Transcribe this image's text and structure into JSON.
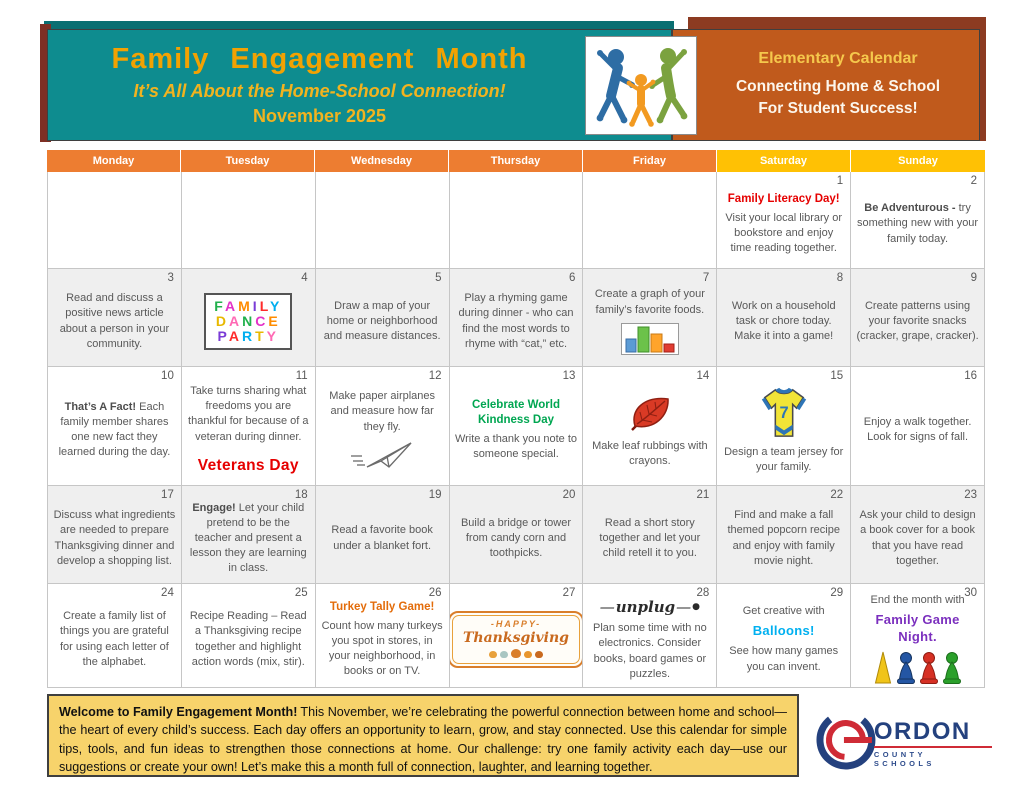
{
  "header": {
    "title": "Family Engagement Month",
    "subtitle": "It’s All About the Home-School Connection!",
    "month": "November 2025",
    "badge": {
      "title": "Elementary Calendar",
      "line1": "Connecting Home & School",
      "line2": "For Student Success!"
    }
  },
  "colors": {
    "red": "#E60000",
    "green": "#00A651",
    "orange": "#E36C0A",
    "cyan": "#00B0F0",
    "purple": "#7B2FBE",
    "weekday_bg": "#ED7D31",
    "weekend_bg": "#FFC104",
    "teal": "#0E8C8F",
    "header_orange": "#C05A1C",
    "welcome_bg": "#F7D36B"
  },
  "calendar": {
    "weekdays": [
      "Monday",
      "Tuesday",
      "Wednesday",
      "Thursday",
      "Friday",
      "Saturday",
      "Sunday"
    ],
    "cells": [
      {
        "day": "",
        "parts": []
      },
      {
        "day": "",
        "parts": []
      },
      {
        "day": "",
        "parts": []
      },
      {
        "day": "",
        "parts": []
      },
      {
        "day": "",
        "parts": []
      },
      {
        "day": "1",
        "parts": [
          {
            "t": "heading",
            "color": "red",
            "text": "Family Literacy Day!"
          },
          {
            "t": "text",
            "text": "Visit your local library or bookstore and enjoy time reading together."
          }
        ]
      },
      {
        "day": "2",
        "parts": [
          {
            "t": "lead",
            "b": "Be Adventurous -",
            "r": "try something new with your family today."
          }
        ]
      },
      {
        "day": "3",
        "parts": [
          {
            "t": "text",
            "text": "Read and discuss a positive news article about a person in your community."
          }
        ]
      },
      {
        "day": "4",
        "parts": [
          {
            "t": "icon",
            "name": "family-dance-party",
            "lines": [
              "FAMILY",
              "DANCE",
              "PARTY"
            ]
          }
        ]
      },
      {
        "day": "5",
        "parts": [
          {
            "t": "text",
            "text": "Draw a map of your home or neighborhood and measure distances."
          }
        ]
      },
      {
        "day": "6",
        "parts": [
          {
            "t": "text",
            "text": "Play a rhyming game during dinner - who can find the most words to rhyme with “cat,” etc."
          }
        ]
      },
      {
        "day": "7",
        "parts": [
          {
            "t": "text",
            "text": "Create a graph of your family’s favorite foods."
          },
          {
            "t": "icon",
            "name": "bar-chart"
          }
        ]
      },
      {
        "day": "8",
        "parts": [
          {
            "t": "text",
            "text": "Work on a household task or chore today. Make it into a game!"
          }
        ]
      },
      {
        "day": "9",
        "parts": [
          {
            "t": "text",
            "text": "Create patterns using your favorite snacks (cracker, grape, cracker)."
          }
        ]
      },
      {
        "day": "10",
        "parts": [
          {
            "t": "lead",
            "b": "That’s A Fact!",
            "r": "Each family member shares one new fact they learned during the day."
          }
        ]
      },
      {
        "day": "11",
        "parts": [
          {
            "t": "text",
            "text": "Take turns sharing what freedoms you are thankful for because of a veteran during dinner."
          },
          {
            "t": "heading",
            "color": "red",
            "size": "lg",
            "text": "Veterans Day"
          }
        ]
      },
      {
        "day": "12",
        "parts": [
          {
            "t": "text",
            "text": "Make paper airplanes and measure how far they fly."
          },
          {
            "t": "icon",
            "name": "paper-airplane"
          }
        ]
      },
      {
        "day": "13",
        "parts": [
          {
            "t": "heading",
            "color": "green",
            "text": "Celebrate World Kindness Day"
          },
          {
            "t": "text",
            "text": "Write a thank you note to someone special."
          }
        ]
      },
      {
        "day": "14",
        "parts": [
          {
            "t": "icon",
            "name": "leaf"
          },
          {
            "t": "text",
            "text": "Make leaf rubbings with crayons."
          }
        ]
      },
      {
        "day": "15",
        "parts": [
          {
            "t": "icon",
            "name": "jersey",
            "number": "7"
          },
          {
            "t": "text",
            "text": "Design a team jersey for your family."
          }
        ]
      },
      {
        "day": "16",
        "parts": [
          {
            "t": "text",
            "text": "Enjoy a walk together. Look for signs of fall."
          }
        ]
      },
      {
        "day": "17",
        "parts": [
          {
            "t": "text",
            "text": "Discuss what ingredients are needed to prepare Thanksgiving dinner and develop a shopping list."
          }
        ]
      },
      {
        "day": "18",
        "parts": [
          {
            "t": "lead",
            "b": "Engage!",
            "r": "Let your child pretend to be the teacher and present a lesson they are learning in class."
          }
        ]
      },
      {
        "day": "19",
        "parts": [
          {
            "t": "text",
            "text": "Read a favorite book under a blanket fort."
          }
        ]
      },
      {
        "day": "20",
        "parts": [
          {
            "t": "text",
            "text": "Build a bridge or tower from candy corn and toothpicks."
          }
        ]
      },
      {
        "day": "21",
        "parts": [
          {
            "t": "text",
            "text": "Read a short story together and let your child retell it to you."
          }
        ]
      },
      {
        "day": "22",
        "parts": [
          {
            "t": "text",
            "text": "Find and make a fall themed popcorn recipe and enjoy with family movie night."
          }
        ]
      },
      {
        "day": "23",
        "parts": [
          {
            "t": "text",
            "text": "Ask your child to design a book cover for a book that you have read together."
          }
        ]
      },
      {
        "day": "24",
        "parts": [
          {
            "t": "text",
            "text": "Create a family list of things you are grateful for using each letter of the alphabet."
          }
        ]
      },
      {
        "day": "25",
        "parts": [
          {
            "t": "text",
            "text": "Recipe Reading – Read a Thanksgiving recipe together and highlight action words (mix, stir)."
          }
        ]
      },
      {
        "day": "26",
        "parts": [
          {
            "t": "heading",
            "color": "orange",
            "text": "Turkey Tally Game!"
          },
          {
            "t": "text",
            "text": "Count how many turkeys you spot in stores, in your neighborhood, in books or on TV."
          }
        ]
      },
      {
        "day": "27",
        "parts": [
          {
            "t": "icon",
            "name": "thanksgiving-badge",
            "lines": [
              "-HAPPY-",
              "Thanksgiving"
            ]
          }
        ]
      },
      {
        "day": "28",
        "parts": [
          {
            "t": "icon",
            "name": "unplug",
            "word": "unplug"
          },
          {
            "t": "text",
            "text": "Plan some time with no electronics.  Consider books, board games or puzzles."
          }
        ]
      },
      {
        "day": "29",
        "parts": [
          {
            "t": "text",
            "text": "Get creative with"
          },
          {
            "t": "heading",
            "color": "cyan",
            "size": "md",
            "text": "Balloons!"
          },
          {
            "t": "text",
            "text": "See how many games you can invent."
          }
        ]
      },
      {
        "day": "30",
        "parts": [
          {
            "t": "text",
            "text": "End the month with"
          },
          {
            "t": "heading",
            "color": "purple",
            "size": "md",
            "text": "Family Game Night."
          },
          {
            "t": "icon",
            "name": "game-pawns"
          }
        ]
      }
    ]
  },
  "footer": {
    "welcome_bold": "Welcome to Family Engagement Month!",
    "welcome_text": "This November, we’re celebrating the powerful connection between home and school—the heart of every child’s success. Each day offers an opportunity to learn, grow, and stay connected. Use this calendar for simple tips, tools, and fun ideas to strengthen those connections at home. Our challenge: try one family activity each day—use our suggestions or create your own! Let’s make this a month full of connection, laughter, and learning together.",
    "logo": {
      "initial": "G",
      "name": "ORDON",
      "sub": "COUNTY SCHOOLS"
    }
  }
}
